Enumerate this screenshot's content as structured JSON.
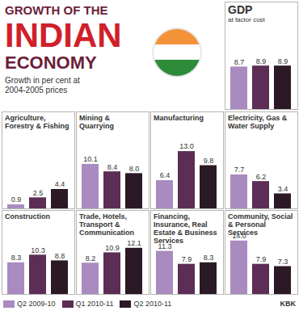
{
  "title_lines": [
    "GROWTH OF THE",
    "INDIAN",
    "ECONOMY"
  ],
  "subtitle": "Growth in per cent at 2004-2005 prices",
  "credit": "KBK",
  "chart_data": [
    {
      "type": "bar",
      "title": "GDP",
      "subtitle": "at factor cost",
      "categories": [
        "Q2 2009-10",
        "Q1 2010-11",
        "Q2 2010-11"
      ],
      "values": [
        8.7,
        8.9,
        8.9
      ],
      "value_labels": [
        "8.7",
        "8.9",
        "8.9"
      ],
      "colors": [
        "#a98bbf",
        "#5c2d55",
        "#2b1a26"
      ],
      "ylim": [
        0,
        22
      ],
      "data_labels": true,
      "tick_labels": false
    },
    {
      "type": "bar",
      "title": "Agriculture, Forestry & Fishing",
      "categories": [
        "Q2 2009-10",
        "Q1 2010-11",
        "Q2 2010-11"
      ],
      "values": [
        0.9,
        2.5,
        4.4
      ],
      "value_labels": [
        "0.9",
        "2.5",
        "4.4"
      ],
      "colors": [
        "#a98bbf",
        "#5c2d55",
        "#2b1a26"
      ],
      "ylim": [
        0,
        22
      ],
      "data_labels": true,
      "tick_labels": false
    },
    {
      "type": "bar",
      "title": "Mining & Quarrying",
      "categories": [
        "Q2 2009-10",
        "Q1 2010-11",
        "Q2 2010-11"
      ],
      "values": [
        10.1,
        8.4,
        8.0
      ],
      "value_labels": [
        "10.1",
        "8.4",
        "8.0"
      ],
      "colors": [
        "#a98bbf",
        "#5c2d55",
        "#2b1a26"
      ],
      "ylim": [
        0,
        22
      ],
      "data_labels": true,
      "tick_labels": false
    },
    {
      "type": "bar",
      "title": "Manufacturing",
      "categories": [
        "Q2 2009-10",
        "Q1 2010-11",
        "Q2 2010-11"
      ],
      "values": [
        6.4,
        13.0,
        9.8
      ],
      "value_labels": [
        "6.4",
        "13.0",
        "9.8"
      ],
      "colors": [
        "#a98bbf",
        "#5c2d55",
        "#2b1a26"
      ],
      "ylim": [
        0,
        22
      ],
      "data_labels": true,
      "tick_labels": false
    },
    {
      "type": "bar",
      "title": "Electricity, Gas & Water Supply",
      "categories": [
        "Q2 2009-10",
        "Q1 2010-11",
        "Q2 2010-11"
      ],
      "values": [
        7.7,
        6.2,
        3.4
      ],
      "value_labels": [
        "7.7",
        "6.2",
        "3.4"
      ],
      "colors": [
        "#a98bbf",
        "#5c2d55",
        "#2b1a26"
      ],
      "ylim": [
        0,
        22
      ],
      "data_labels": true,
      "tick_labels": false
    },
    {
      "type": "bar",
      "title": "Construction",
      "categories": [
        "Q2 2009-10",
        "Q1 2010-11",
        "Q2 2010-11"
      ],
      "values": [
        8.3,
        10.3,
        8.8
      ],
      "value_labels": [
        "8.3",
        "10.3",
        "8.8"
      ],
      "colors": [
        "#a98bbf",
        "#5c2d55",
        "#2b1a26"
      ],
      "ylim": [
        0,
        22
      ],
      "data_labels": true,
      "tick_labels": false
    },
    {
      "type": "bar",
      "title": "Trade, Hotels, Transport & Communication",
      "categories": [
        "Q2 2009-10",
        "Q1 2010-11",
        "Q2 2010-11"
      ],
      "values": [
        8.2,
        10.9,
        12.1
      ],
      "value_labels": [
        "8.2",
        "10.9",
        "12.1"
      ],
      "colors": [
        "#a98bbf",
        "#5c2d55",
        "#2b1a26"
      ],
      "ylim": [
        0,
        22
      ],
      "data_labels": true,
      "tick_labels": false
    },
    {
      "type": "bar",
      "title": "Financing, Insurance, Real Estate & Business Services",
      "categories": [
        "Q2 2009-10",
        "Q1 2010-11",
        "Q2 2010-11"
      ],
      "values": [
        11.3,
        7.9,
        8.3
      ],
      "value_labels": [
        "11.3",
        "7.9",
        "8.3"
      ],
      "colors": [
        "#a98bbf",
        "#5c2d55",
        "#2b1a26"
      ],
      "ylim": [
        0,
        22
      ],
      "data_labels": true,
      "tick_labels": false
    },
    {
      "type": "bar",
      "title": "Community, Social & Personal Services",
      "categories": [
        "Q2 2009-10",
        "Q1 2010-11",
        "Q2 2010-11"
      ],
      "values": [
        14.0,
        7.9,
        7.3
      ],
      "value_labels": [
        "14.0",
        "7.9",
        "7.3"
      ],
      "colors": [
        "#a98bbf",
        "#5c2d55",
        "#2b1a26"
      ],
      "ylim": [
        0,
        22
      ],
      "data_labels": true,
      "tick_labels": false
    }
  ]
}
